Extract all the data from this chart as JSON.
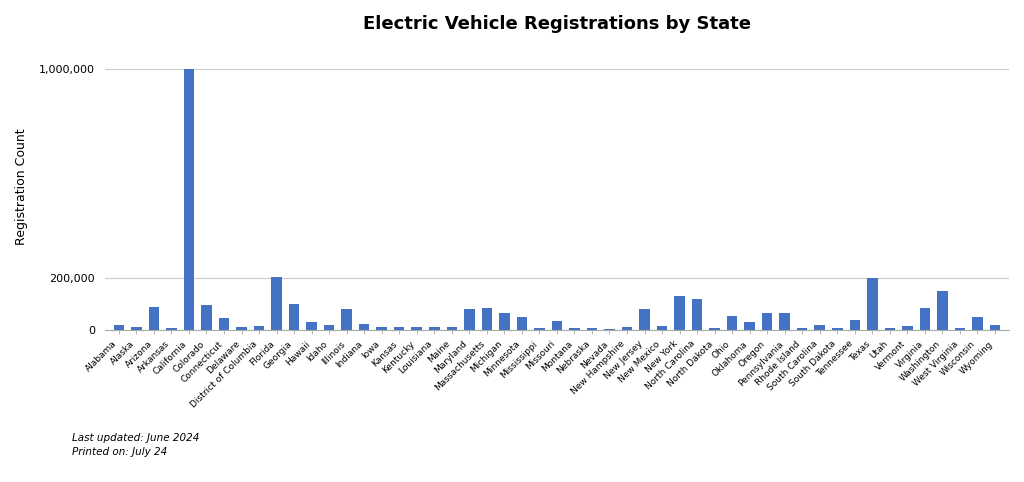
{
  "title": "Electric Vehicle Registrations by State",
  "ylabel": "Registration Count",
  "footer_line1": "Last updated: June 2024",
  "footer_line2": "Printed on: July 24",
  "bar_color": "#4472c4",
  "background_color": "#ffffff",
  "yticks": [
    0,
    200000,
    1000000
  ],
  "states": [
    "Alabama",
    "Alaska",
    "Arizona",
    "Arkansas",
    "California",
    "Colorado",
    "Connecticut",
    "Delaware",
    "District of Columbia",
    "Florida",
    "Georgia",
    "Hawaii",
    "Idaho",
    "Illinois",
    "Indiana",
    "Iowa",
    "Kansas",
    "Kentucky",
    "Louisiana",
    "Maine",
    "Maryland",
    "Massachusetts",
    "Michigan",
    "Minnesota",
    "Mississippi",
    "Missouri",
    "Montana",
    "Nebraska",
    "Nevada",
    "New Hampshire",
    "New Jersey",
    "New Mexico",
    "New York",
    "North Carolina",
    "North Dakota",
    "Ohio",
    "Oklahoma",
    "Oregon",
    "Pennsylvania",
    "Rhode Island",
    "South Carolina",
    "South Dakota",
    "Tennessee",
    "Texas",
    "Utah",
    "Vermont",
    "Virginia",
    "Washington",
    "West Virginia",
    "Wisconsin",
    "Wyoming"
  ],
  "values": [
    18000,
    12000,
    90000,
    7000,
    1000000,
    95000,
    45000,
    12000,
    15000,
    205000,
    100000,
    30000,
    20000,
    80000,
    25000,
    13000,
    12000,
    13000,
    11000,
    12000,
    80000,
    85000,
    65000,
    50000,
    8000,
    35000,
    7000,
    10000,
    6000,
    12000,
    80000,
    14000,
    130000,
    120000,
    10000,
    55000,
    30000,
    65000,
    65000,
    8000,
    20000,
    7000,
    40000,
    200000,
    10000,
    15000,
    85000,
    150000,
    8000,
    50000,
    18000
  ]
}
